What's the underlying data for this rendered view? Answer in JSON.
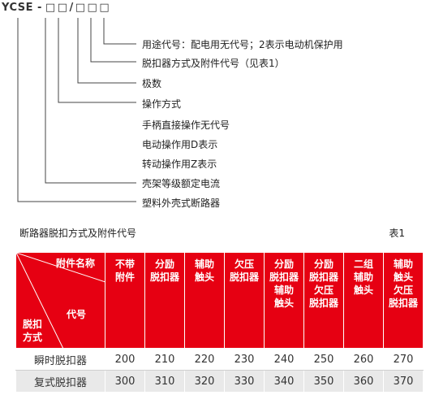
{
  "model_code": {
    "prefix": "YCSE -",
    "boxes": [
      "□",
      "□",
      "/",
      "□",
      "□",
      "□"
    ]
  },
  "legend": [
    "用途代号：配电用无代号；2表示电动机保护用",
    "脱扣器方式及附件代号（见表1）",
    "极数",
    "操作方式",
    "手柄直接操作无代号",
    "电动操作用D表示",
    "转动操作用Z表示",
    "壳架等级额定电流",
    "塑料外壳式断路器"
  ],
  "table": {
    "title": "断路器脱扣方式及附件代号",
    "ref": "表1",
    "header_color": "#e60012",
    "corner": {
      "top": "附件名称",
      "middle": "代号",
      "bottom_lines": [
        "脱扣",
        "方式"
      ]
    },
    "columns": [
      [
        "不带",
        "附件"
      ],
      [
        "分励",
        "脱扣器"
      ],
      [
        "辅助",
        "触头"
      ],
      [
        "欠压",
        "脱扣器"
      ],
      [
        "分励",
        "脱扣器",
        "辅助",
        "触头"
      ],
      [
        "分励",
        "脱扣器",
        "欠压",
        "脱扣器"
      ],
      [
        "二组",
        "辅助",
        "触头"
      ],
      [
        "辅助",
        "触头",
        "欠压",
        "脱扣器"
      ]
    ],
    "rows": [
      {
        "label": "瞬时脱扣器",
        "values": [
          "200",
          "210",
          "220",
          "230",
          "240",
          "250",
          "260",
          "270"
        ]
      },
      {
        "label": "复式脱扣器",
        "values": [
          "300",
          "310",
          "320",
          "330",
          "340",
          "350",
          "360",
          "370"
        ]
      }
    ]
  }
}
